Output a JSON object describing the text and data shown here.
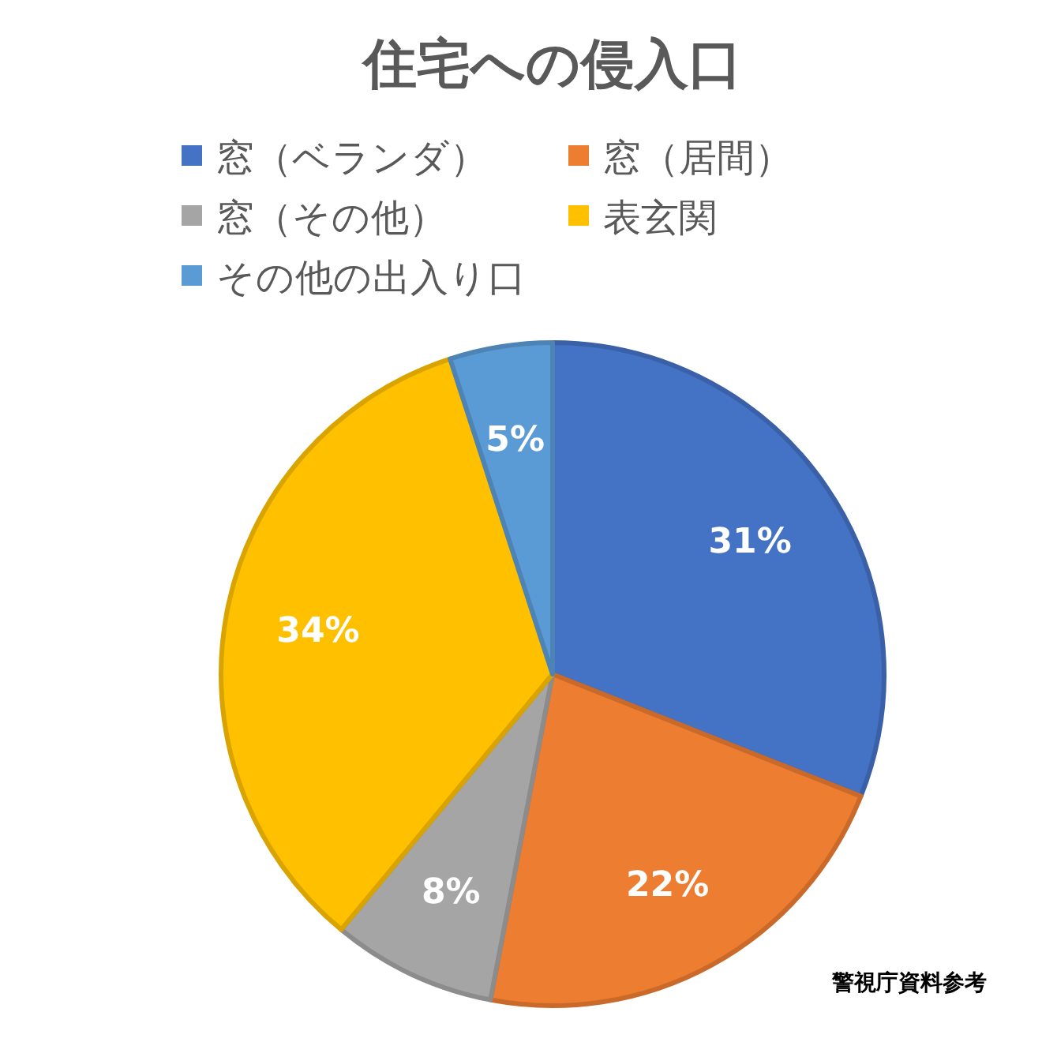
{
  "chart_data": {
    "type": "pie",
    "title": "住宅への侵入口",
    "categories": [
      "窓（ベランダ）",
      "窓（居間）",
      "窓（その他）",
      "表玄関",
      "その他の出入り口"
    ],
    "values": [
      31,
      22,
      8,
      34,
      5
    ],
    "value_labels": [
      "31%",
      "22%",
      "8%",
      "34%",
      "5%"
    ],
    "colors": [
      "#4472c4",
      "#ed7d31",
      "#a5a5a5",
      "#ffc000",
      "#5b9bd5"
    ],
    "legend": "top",
    "annotations": [
      "警視庁資料参考"
    ]
  }
}
